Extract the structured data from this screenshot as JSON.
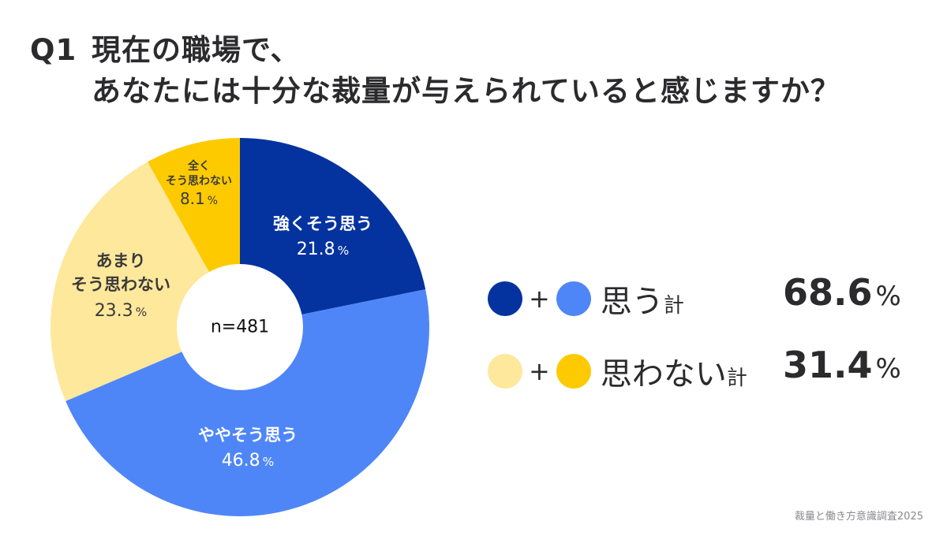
{
  "title": {
    "q_number": "Q1",
    "line1": "現在の職場で、",
    "line2": "あなたには十分な裁量が与えられていると感じますか？"
  },
  "chart_data": {
    "type": "pie",
    "title": "Q1 現在の職場で、あなたには十分な裁量が与えられていると感じますか？",
    "sample_size": "n=481",
    "categories": [
      "強くそう思う",
      "ややそう思う",
      "あまりそう思わない",
      "全くそう思わない"
    ],
    "values": [
      21.8,
      46.8,
      23.3,
      8.1
    ],
    "colors": [
      "#0433a0",
      "#4f86f7",
      "#fde89c",
      "#fdca00"
    ],
    "unit": "%",
    "donut": true,
    "start_angle": "12 o'clock, clockwise",
    "legend": [
      {
        "label": "思う計",
        "total": 68.6,
        "colors": [
          "#0433a0",
          "#4f86f7"
        ]
      },
      {
        "label": "思わない計",
        "total": 31.4,
        "colors": [
          "#fde89c",
          "#fdca00"
        ]
      }
    ]
  },
  "slices": {
    "strong_agree": {
      "label": "強くそう思う",
      "pct": "21.8",
      "unit": "%"
    },
    "somewhat_agree": {
      "label": "ややそう思う",
      "pct": "46.8",
      "unit": "%"
    },
    "somewhat_disagree": {
      "label1": "あまり",
      "label2": "そう思わない",
      "pct": "23.3",
      "unit": "%"
    },
    "strong_disagree": {
      "label1": "全く",
      "label2": "そう思わない",
      "pct": "8.1",
      "unit": "%"
    }
  },
  "center": {
    "n": "n=481"
  },
  "legend": {
    "plus": "+",
    "agree": {
      "label": "思う",
      "suffix": "計",
      "value": "68.6",
      "unit": "%"
    },
    "disagree": {
      "label": "思わない",
      "suffix": "計",
      "value": "31.4",
      "unit": "%"
    }
  },
  "source": "裁量と働き方意識調査2025"
}
